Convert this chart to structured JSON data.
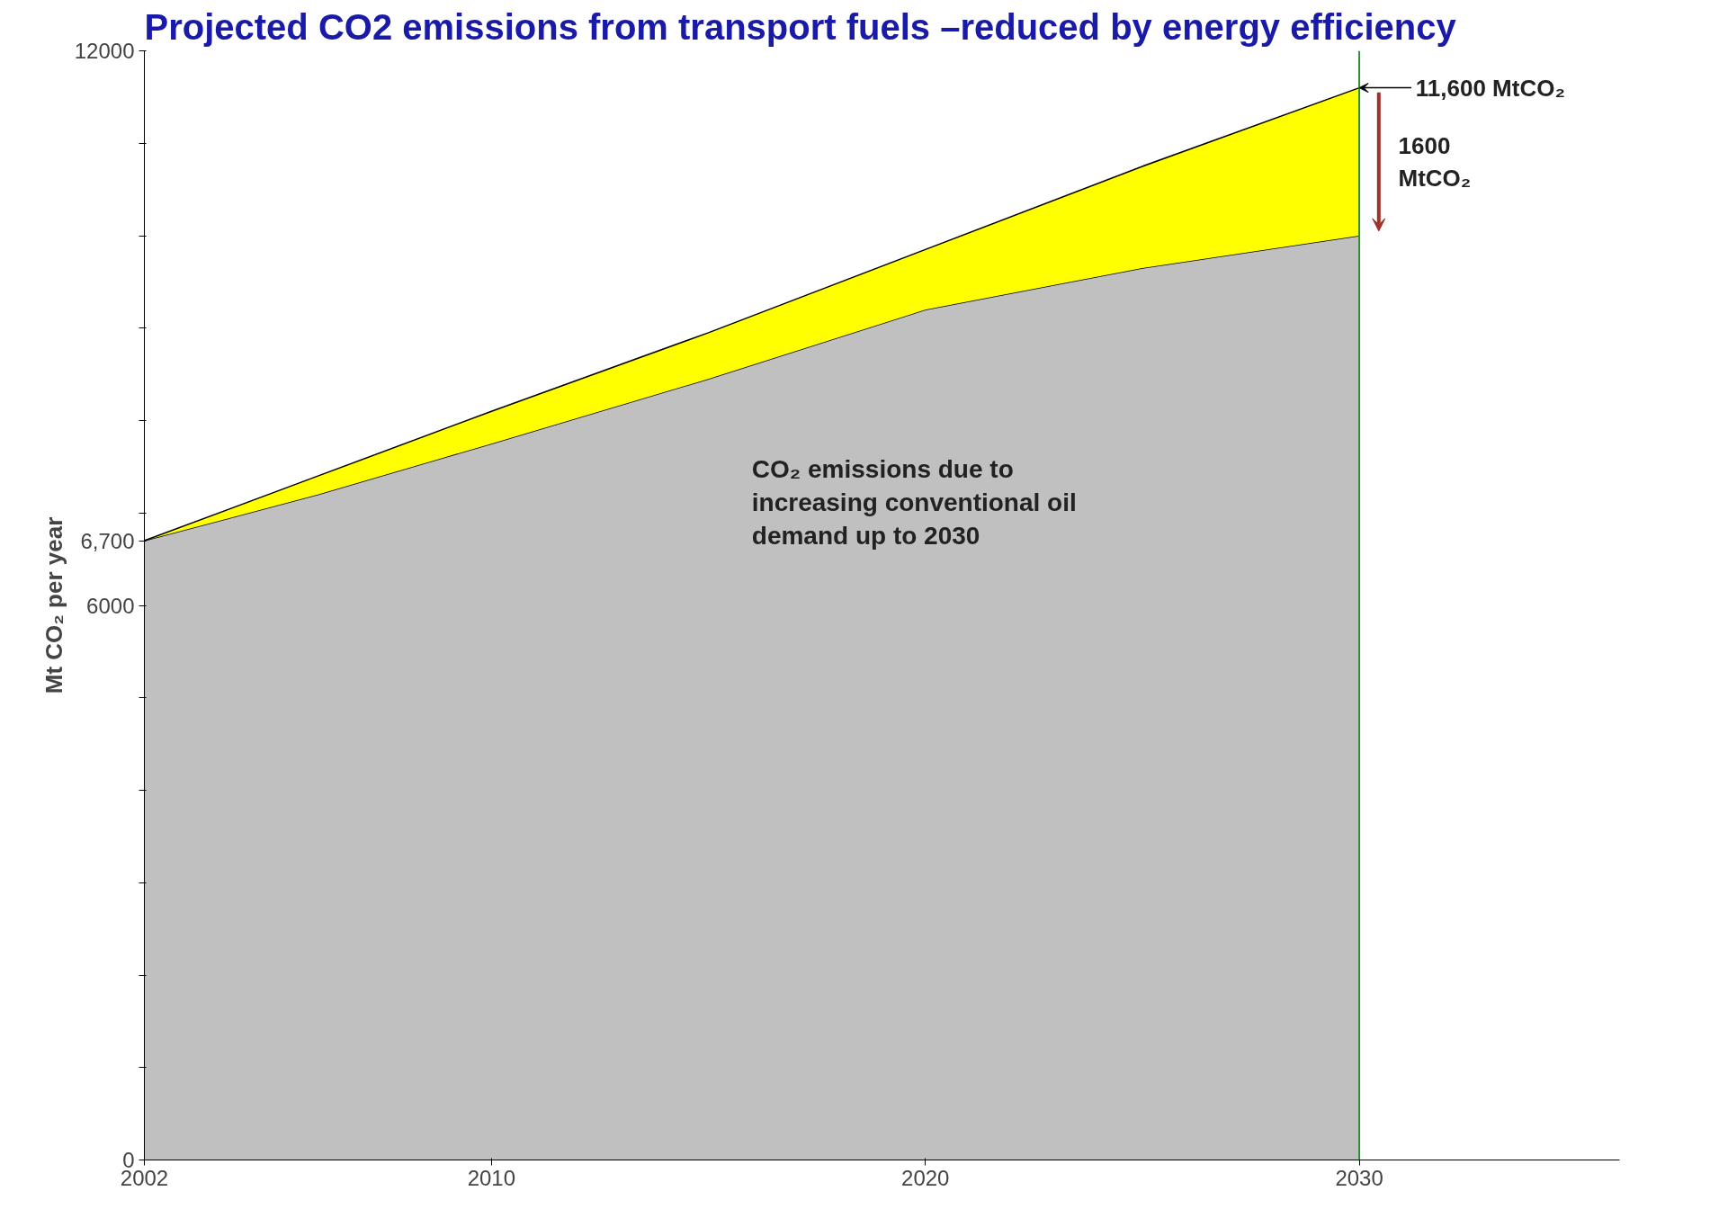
{
  "chart_data": {
    "type": "area",
    "title": "Projected CO2 emissions from transport fuels –reduced by energy efficiency",
    "ylabel": "Mt CO₂ per year",
    "stacked": true,
    "x": [
      2002,
      2006,
      2010,
      2015,
      2020,
      2025,
      2030
    ],
    "series": [
      {
        "color": "#c0c0c0",
        "values": [
          6700,
          7200,
          7750,
          8450,
          9200,
          9650,
          10000
        ]
      },
      {
        "color": "#ffff00",
        "values": [
          0,
          200,
          350,
          500,
          650,
          1100,
          1600
        ]
      }
    ],
    "xlim": [
      2002,
      2036
    ],
    "xticks": [
      2002,
      2010,
      2020,
      2030
    ],
    "ylim": [
      0,
      12000
    ],
    "yticks": [
      0,
      {
        "value": 1000,
        "label": null
      },
      {
        "value": 2000,
        "label": null
      },
      {
        "value": 3000,
        "label": null
      },
      {
        "value": 4000,
        "label": null
      },
      {
        "value": 5000,
        "label": null
      },
      6000,
      {
        "value": 6700,
        "label": "6,700"
      },
      {
        "value": 7000,
        "label": null
      },
      {
        "value": 8000,
        "label": null
      },
      {
        "value": 9000,
        "label": null
      },
      {
        "value": 10000,
        "label": null
      },
      {
        "value": 11000,
        "label": null
      },
      12000
    ],
    "ref_lines": [
      {
        "axis": "x",
        "value": 2030,
        "label": null,
        "color": "#2e8b2e"
      }
    ],
    "annotations": [
      {
        "text": "11,600 MtCO₂",
        "x": 2030,
        "y": 11600
      },
      {
        "text": "1600 MtCO₂",
        "x": 2030,
        "y": 10800
      },
      "CO₂ emissions due to increasing conventional oil demand up to 2030"
    ],
    "grid": false
  }
}
